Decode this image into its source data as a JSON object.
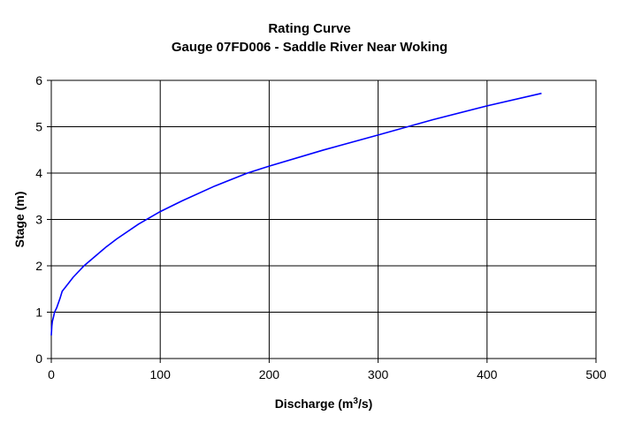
{
  "chart_data": {
    "type": "line",
    "title": "Rating Curve",
    "subtitle": "Gauge 07FD006 - Saddle River Near Woking",
    "xlabel": "Discharge (m³/s)",
    "xlabel_base": "Discharge (m",
    "xlabel_sup": "3",
    "xlabel_tail": "/s)",
    "ylabel": "Stage (m)",
    "xlim": [
      0,
      500
    ],
    "ylim": [
      0,
      6
    ],
    "xticks": [
      "0",
      "100",
      "200",
      "300",
      "400",
      "500"
    ],
    "yticks": [
      "0",
      "1",
      "2",
      "3",
      "4",
      "5",
      "6"
    ],
    "grid": true,
    "line_color": "#0000ff",
    "series": [
      {
        "x": [
          0,
          0.5,
          1,
          2,
          3,
          5,
          8,
          10,
          15,
          20,
          30,
          40,
          50,
          60,
          80,
          100,
          120,
          150,
          180,
          200,
          250,
          300,
          350,
          400,
          450
        ],
        "y": [
          0.5,
          0.7,
          0.8,
          0.9,
          1.0,
          1.1,
          1.3,
          1.45,
          1.6,
          1.75,
          2.0,
          2.2,
          2.4,
          2.58,
          2.9,
          3.17,
          3.4,
          3.72,
          4.0,
          4.15,
          4.5,
          4.82,
          5.15,
          5.45,
          5.72
        ]
      }
    ]
  }
}
